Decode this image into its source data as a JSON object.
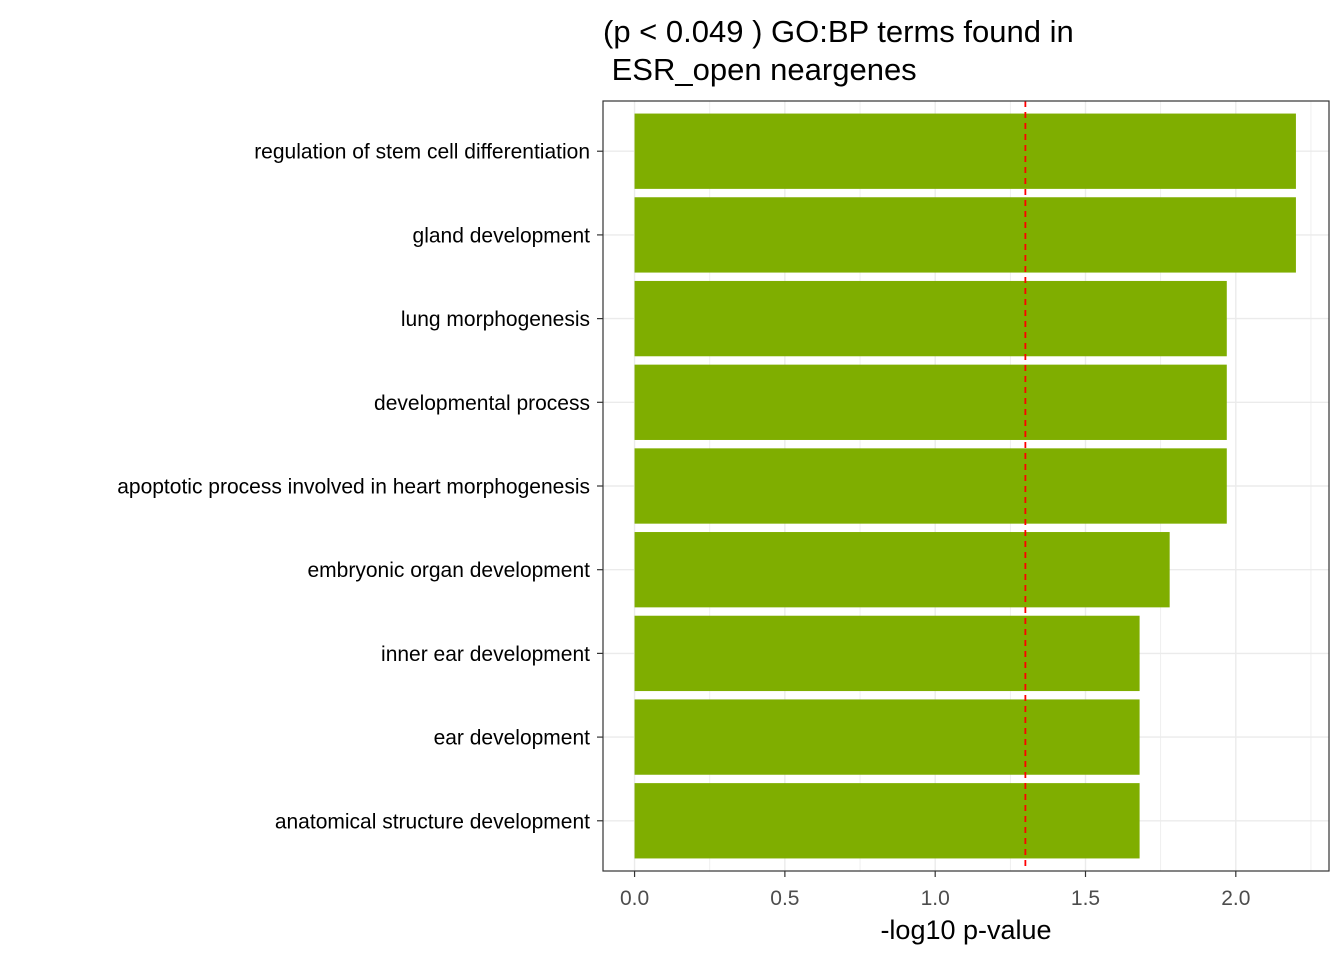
{
  "chart_data": {
    "type": "bar",
    "orientation": "horizontal",
    "title_lines": [
      "(p < 0.049 ) GO:BP terms found in",
      " ESR_open neargenes"
    ],
    "xlabel": "-log10 p-value",
    "ylabel": "",
    "categories": [
      "regulation of stem cell differentiation",
      "gland development",
      "lung morphogenesis",
      "developmental process",
      "apoptotic process involved in heart morphogenesis",
      "embryonic organ development",
      "inner ear development",
      "ear development",
      "anatomical structure development"
    ],
    "values": [
      2.2,
      2.2,
      1.97,
      1.97,
      1.97,
      1.78,
      1.68,
      1.68,
      1.68
    ],
    "xlim": [
      -0.105,
      2.31
    ],
    "xticks": [
      0.0,
      0.5,
      1.0,
      1.5,
      2.0
    ],
    "xtick_labels": [
      "0.0",
      "0.5",
      "1.0",
      "1.5",
      "2.0"
    ],
    "threshold_line": 1.3,
    "grid": true,
    "colors": {
      "bar": "#7FAE00",
      "threshold": "#FF0000",
      "grid": "#EBEBEB",
      "border": "#333333"
    }
  }
}
